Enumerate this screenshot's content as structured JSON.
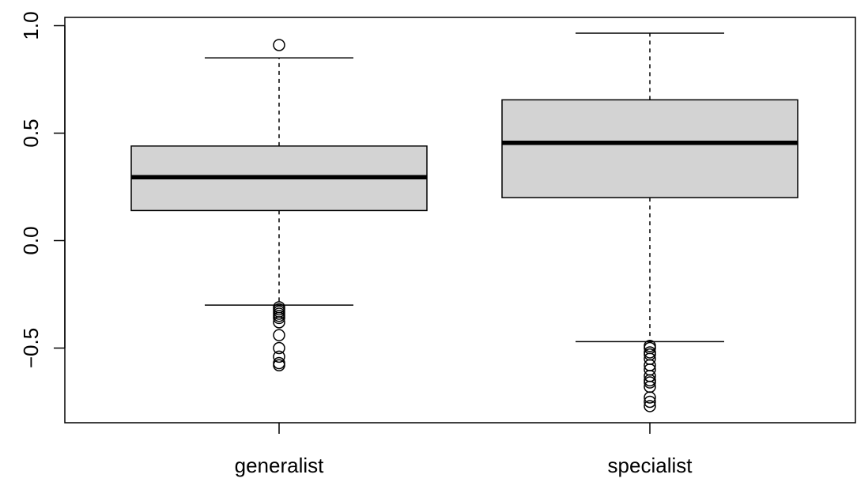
{
  "chart_data": {
    "type": "boxplot",
    "title": "",
    "xlabel": "",
    "ylabel": "",
    "ylim": [
      -0.85,
      1.02
    ],
    "yticks": [
      -0.5,
      0.0,
      0.5,
      1.0
    ],
    "ytick_labels": [
      "−0.5",
      "0.0",
      "0.5",
      "1.0"
    ],
    "grid": false,
    "box_fill": "#d3d3d3",
    "line_color": "#000000",
    "categories": [
      "generalist",
      "specialist"
    ],
    "boxes": [
      {
        "category": "generalist",
        "whisker_low": -0.3,
        "q1": 0.14,
        "median": 0.295,
        "q3": 0.44,
        "whisker_high": 0.85,
        "outliers": [
          0.91,
          -0.31,
          -0.32,
          -0.33,
          -0.34,
          -0.35,
          -0.36,
          -0.38,
          -0.44,
          -0.5,
          -0.54,
          -0.57,
          -0.58
        ]
      },
      {
        "category": "specialist",
        "whisker_low": -0.47,
        "q1": 0.2,
        "median": 0.455,
        "q3": 0.655,
        "whisker_high": 0.965,
        "outliers": [
          -0.49,
          -0.5,
          -0.52,
          -0.53,
          -0.55,
          -0.58,
          -0.6,
          -0.63,
          -0.65,
          -0.66,
          -0.68,
          -0.73,
          -0.75,
          -0.77
        ]
      }
    ]
  }
}
